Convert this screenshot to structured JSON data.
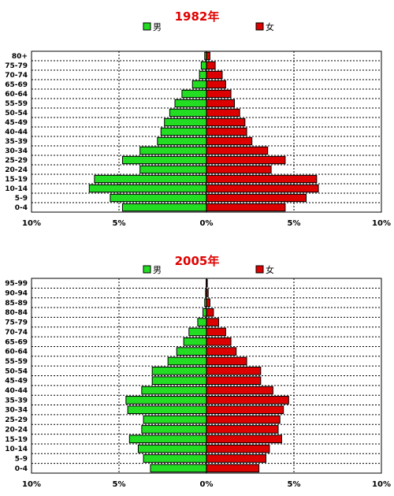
{
  "chart_data": [
    {
      "type": "bar",
      "title": "1982年",
      "legend": [
        {
          "name": "男",
          "color": "#22dd22"
        },
        {
          "name": "女",
          "color": "#dd0000"
        }
      ],
      "categories": [
        "0-4",
        "5-9",
        "10-14",
        "15-19",
        "20-24",
        "25-29",
        "30-34",
        "35-39",
        "40-44",
        "45-49",
        "50-54",
        "55-59",
        "60-64",
        "65-69",
        "70-74",
        "75-79",
        "80+"
      ],
      "series": [
        {
          "name": "男",
          "values": [
            4.8,
            5.5,
            6.7,
            6.4,
            3.8,
            4.8,
            3.8,
            2.8,
            2.6,
            2.4,
            2.1,
            1.8,
            1.4,
            0.8,
            0.4,
            0.3,
            0.1
          ]
        },
        {
          "name": "女",
          "values": [
            4.5,
            5.7,
            6.4,
            6.3,
            3.7,
            4.5,
            3.5,
            2.6,
            2.3,
            2.2,
            1.9,
            1.6,
            1.4,
            1.1,
            0.9,
            0.5,
            0.2
          ]
        }
      ],
      "xlim": [
        -10,
        10
      ],
      "xticks": [
        "10%",
        "5%",
        "0%",
        "5%",
        "10%"
      ],
      "grid": true,
      "legend_position": "top"
    },
    {
      "type": "bar",
      "title": "2005年",
      "legend": [
        {
          "name": "男",
          "color": "#22dd22"
        },
        {
          "name": "女",
          "color": "#dd0000"
        }
      ],
      "categories": [
        "0-4",
        "5-9",
        "10-14",
        "15-19",
        "20-24",
        "25-29",
        "30-34",
        "35-39",
        "40-44",
        "45-49",
        "50-54",
        "55-59",
        "60-64",
        "65-69",
        "70-74",
        "75-79",
        "80-84",
        "85-89",
        "90-94",
        "95-99"
      ],
      "series": [
        {
          "name": "男",
          "values": [
            3.2,
            3.6,
            3.9,
            4.4,
            3.7,
            3.6,
            4.5,
            4.6,
            3.7,
            3.1,
            3.1,
            2.2,
            1.7,
            1.3,
            1.0,
            0.5,
            0.2,
            0.1,
            0.05,
            0.02
          ]
        },
        {
          "name": "女",
          "values": [
            3.0,
            3.4,
            3.6,
            4.3,
            4.1,
            4.2,
            4.4,
            4.7,
            3.8,
            3.1,
            3.1,
            2.3,
            1.7,
            1.4,
            1.1,
            0.7,
            0.4,
            0.2,
            0.1,
            0.05
          ]
        }
      ],
      "xlim": [
        -10,
        10
      ],
      "xticks": [
        "10%",
        "5%",
        "0%",
        "5%",
        "10%"
      ],
      "grid": true,
      "legend_position": "top"
    }
  ]
}
